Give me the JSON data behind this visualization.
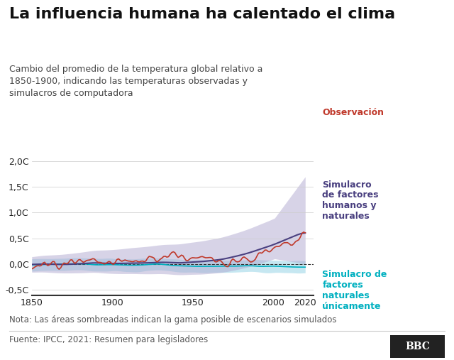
{
  "title": "La influencia humana ha calentado el clima",
  "subtitle": "Cambio del promedio de la temperatura global relativo a\n1850-1900, indicando las temperaturas observadas y\nsimulacros de computadora",
  "note": "Nota: Las áreas sombreadas indican la gama posible de escenarios simulados",
  "source": "Fuente: IPCC, 2021: Resumen para legisladores",
  "bbc_logo": "BBC",
  "xlim": [
    1850,
    2025
  ],
  "ylim": [
    -0.6,
    2.05
  ],
  "yticks": [
    -0.5,
    0.0,
    0.5,
    1.0,
    1.5,
    2.0
  ],
  "ytick_labels": [
    "-0,5C",
    "0,0C",
    "0,5C",
    "1,0C",
    "1,5C",
    "2,0C"
  ],
  "xticks": [
    1850,
    1900,
    1950,
    2000,
    2020
  ],
  "colors": {
    "observed": "#c0392b",
    "human_natural_line": "#4a4080",
    "human_natural_band": "#b0a8d0",
    "natural_line": "#00b0c0",
    "natural_band": "#a0d8e8",
    "zero_line": "#333333",
    "background": "#ffffff",
    "axis_color": "#333333",
    "text_color": "#222222",
    "note_color": "#555555"
  },
  "legend": {
    "observacion": "Observación",
    "human_natural": "Simulacro\nde factores\nhumanos y\nnaturales",
    "natural": "Simulacro de\nfactores\nnaturales\núnicamente"
  }
}
